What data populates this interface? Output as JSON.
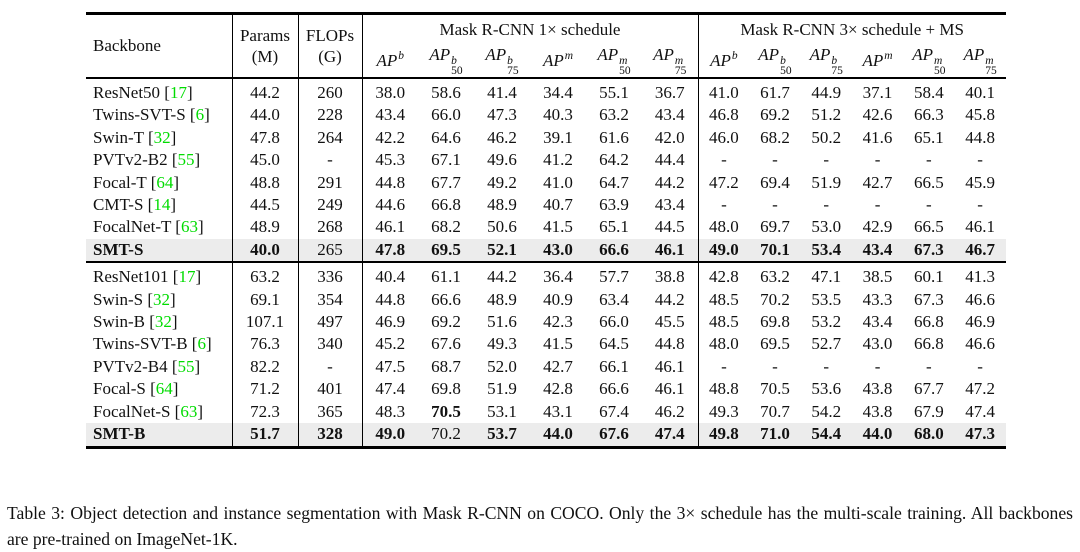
{
  "colors": {
    "citation_green": "#00DC00",
    "highlight_row_bg": "#ECECEC",
    "rule_black": "#000000"
  },
  "table": {
    "header": {
      "backbone": "Backbone",
      "params_line1": "Params",
      "params_line2": "(M)",
      "flops_line1": "FLOPs",
      "flops_line2": "(G)",
      "group1_title": "Mask R-CNN 1× schedule",
      "group2_title": "Mask R-CNN 3× schedule + MS"
    },
    "metric_columns": [
      {
        "sup": "b",
        "sub": ""
      },
      {
        "sup": "b",
        "sub": "50"
      },
      {
        "sup": "b",
        "sub": "75"
      },
      {
        "sup": "m",
        "sub": ""
      },
      {
        "sup": "m",
        "sub": "50"
      },
      {
        "sup": "m",
        "sub": "75"
      }
    ],
    "groups": [
      {
        "rows": [
          {
            "name": "ResNet50",
            "cite": "17",
            "params": "44.2",
            "flops": "260",
            "v1": [
              "38.0",
              "58.6",
              "41.4",
              "34.4",
              "55.1",
              "36.7"
            ],
            "v3": [
              "41.0",
              "61.7",
              "44.9",
              "37.1",
              "58.4",
              "40.1"
            ]
          },
          {
            "name": "Twins-SVT-S",
            "cite": "6",
            "params": "44.0",
            "flops": "228",
            "v1": [
              "43.4",
              "66.0",
              "47.3",
              "40.3",
              "63.2",
              "43.4"
            ],
            "v3": [
              "46.8",
              "69.2",
              "51.2",
              "42.6",
              "66.3",
              "45.8"
            ]
          },
          {
            "name": "Swin-T",
            "cite": "32",
            "params": "47.8",
            "flops": "264",
            "v1": [
              "42.2",
              "64.6",
              "46.2",
              "39.1",
              "61.6",
              "42.0"
            ],
            "v3": [
              "46.0",
              "68.2",
              "50.2",
              "41.6",
              "65.1",
              "44.8"
            ]
          },
          {
            "name": "PVTv2-B2",
            "cite": "55",
            "params": "45.0",
            "flops": "-",
            "v1": [
              "45.3",
              "67.1",
              "49.6",
              "41.2",
              "64.2",
              "44.4"
            ],
            "v3": [
              "-",
              "-",
              "-",
              "-",
              "-",
              "-"
            ]
          },
          {
            "name": "Focal-T",
            "cite": "64",
            "params": "48.8",
            "flops": "291",
            "v1": [
              "44.8",
              "67.7",
              "49.2",
              "41.0",
              "64.7",
              "44.2"
            ],
            "v3": [
              "47.2",
              "69.4",
              "51.9",
              "42.7",
              "66.5",
              "45.9"
            ]
          },
          {
            "name": "CMT-S",
            "cite": "14",
            "params": "44.5",
            "flops": "249",
            "v1": [
              "44.6",
              "66.8",
              "48.9",
              "40.7",
              "63.9",
              "43.4"
            ],
            "v3": [
              "-",
              "-",
              "-",
              "-",
              "-",
              "-"
            ]
          },
          {
            "name": "FocalNet-T",
            "cite": "63",
            "params": "48.9",
            "flops": "268",
            "v1": [
              "46.1",
              "68.2",
              "50.6",
              "41.5",
              "65.1",
              "44.5"
            ],
            "v3": [
              "48.0",
              "69.7",
              "53.0",
              "42.9",
              "66.5",
              "46.1"
            ]
          },
          {
            "name": "SMT-S",
            "cite": "",
            "highlight": true,
            "name_bold": true,
            "params": "40.0",
            "params_bold": true,
            "flops": "265",
            "v1": [
              "47.8",
              "69.5",
              "52.1",
              "43.0",
              "66.6",
              "46.1"
            ],
            "v1_bold": [
              1,
              1,
              1,
              1,
              1,
              1
            ],
            "v3": [
              "49.0",
              "70.1",
              "53.4",
              "43.4",
              "67.3",
              "46.7"
            ],
            "v3_bold": [
              1,
              1,
              1,
              1,
              1,
              1
            ]
          }
        ]
      },
      {
        "rows": [
          {
            "name": "ResNet101",
            "cite": "17",
            "params": "63.2",
            "flops": "336",
            "v1": [
              "40.4",
              "61.1",
              "44.2",
              "36.4",
              "57.7",
              "38.8"
            ],
            "v3": [
              "42.8",
              "63.2",
              "47.1",
              "38.5",
              "60.1",
              "41.3"
            ]
          },
          {
            "name": "Swin-S",
            "cite": "32",
            "params": "69.1",
            "flops": "354",
            "v1": [
              "44.8",
              "66.6",
              "48.9",
              "40.9",
              "63.4",
              "44.2"
            ],
            "v3": [
              "48.5",
              "70.2",
              "53.5",
              "43.3",
              "67.3",
              "46.6"
            ]
          },
          {
            "name": "Swin-B",
            "cite": "32",
            "params": "107.1",
            "flops": "497",
            "v1": [
              "46.9",
              "69.2",
              "51.6",
              "42.3",
              "66.0",
              "45.5"
            ],
            "v3": [
              "48.5",
              "69.8",
              "53.2",
              "43.4",
              "66.8",
              "46.9"
            ]
          },
          {
            "name": "Twins-SVT-B",
            "cite": "6",
            "params": "76.3",
            "flops": "340",
            "v1": [
              "45.2",
              "67.6",
              "49.3",
              "41.5",
              "64.5",
              "44.8"
            ],
            "v3": [
              "48.0",
              "69.5",
              "52.7",
              "43.0",
              "66.8",
              "46.6"
            ]
          },
          {
            "name": "PVTv2-B4",
            "cite": "55",
            "params": "82.2",
            "flops": "-",
            "v1": [
              "47.5",
              "68.7",
              "52.0",
              "42.7",
              "66.1",
              "46.1"
            ],
            "v3": [
              "-",
              "-",
              "-",
              "-",
              "-",
              "-"
            ]
          },
          {
            "name": "Focal-S",
            "cite": "64",
            "params": "71.2",
            "flops": "401",
            "v1": [
              "47.4",
              "69.8",
              "51.9",
              "42.8",
              "66.6",
              "46.1"
            ],
            "v3": [
              "48.8",
              "70.5",
              "53.6",
              "43.8",
              "67.7",
              "47.2"
            ]
          },
          {
            "name": "FocalNet-S",
            "cite": "63",
            "params": "72.3",
            "flops": "365",
            "v1": [
              "48.3",
              "70.5",
              "53.1",
              "43.1",
              "67.4",
              "46.2"
            ],
            "v1_bold": [
              0,
              1,
              0,
              0,
              0,
              0
            ],
            "v3": [
              "49.3",
              "70.7",
              "54.2",
              "43.8",
              "67.9",
              "47.4"
            ]
          },
          {
            "name": "SMT-B",
            "cite": "",
            "highlight": true,
            "name_bold": true,
            "params": "51.7",
            "params_bold": true,
            "flops": "328",
            "flops_bold": true,
            "v1": [
              "49.0",
              "70.2",
              "53.7",
              "44.0",
              "67.6",
              "47.4"
            ],
            "v1_bold": [
              1,
              0,
              1,
              1,
              1,
              1
            ],
            "v3": [
              "49.8",
              "71.0",
              "54.4",
              "44.0",
              "68.0",
              "47.3"
            ],
            "v3_bold": [
              1,
              1,
              1,
              1,
              1,
              1
            ]
          }
        ]
      }
    ]
  },
  "caption": {
    "text": "Table 3: Object detection and instance segmentation with Mask R-CNN on COCO. Only the 3× schedule has the multi-scale training. All backbones are pre-trained on ImageNet-1K."
  }
}
